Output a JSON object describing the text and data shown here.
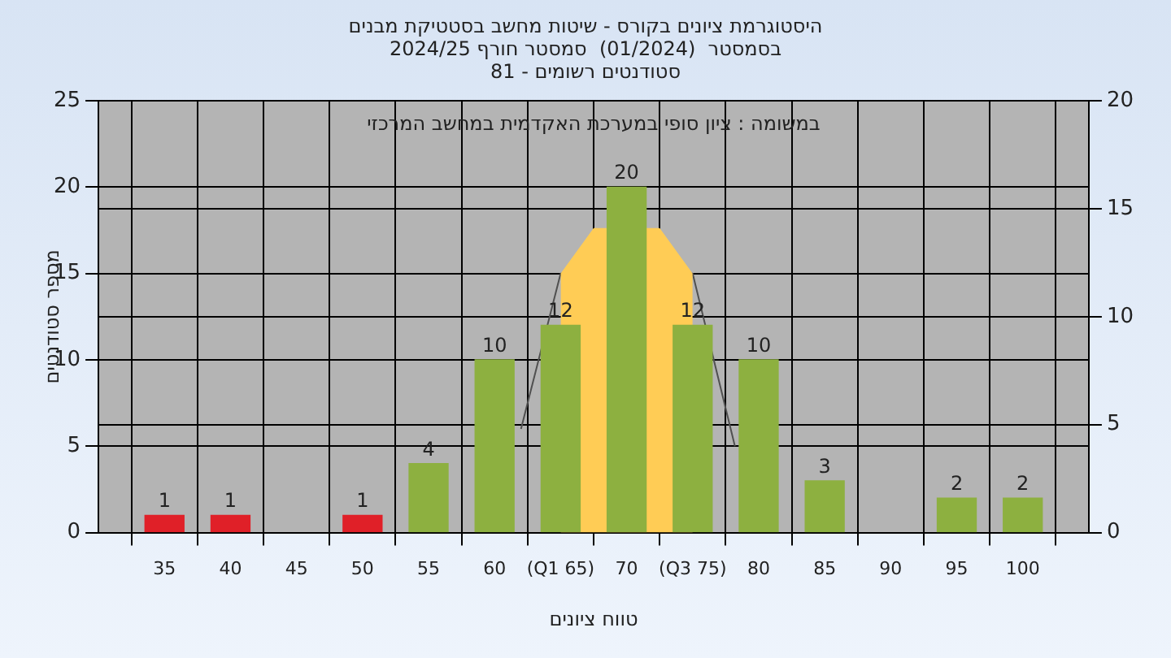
{
  "chart_data": {
    "type": "bar",
    "title": "היסטוגרמת ציונים בקורס - שיטות מחשב בסטטיקת מבנים\nבסמסטר  (01/2024)  סמסטר חורף 2024/25\nסטודנטים רשומים - 81",
    "xlabel": "טווח ציונים",
    "ylabel": "מספר סטודנטים",
    "annotations": [
      "במשומה : ציון סופי במערכת האקדמית במחשב המרכזי"
    ],
    "x": [
      35,
      40,
      50,
      55,
      60,
      65,
      70,
      75,
      80,
      85,
      95,
      100
    ],
    "series": [
      {
        "type": "area",
        "axis": "y2",
        "color": "#ffcc55",
        "x": [
          65,
          67.5,
          72.5,
          75
        ],
        "values": [
          12,
          14.1,
          14.1,
          12
        ]
      },
      {
        "type": "line",
        "axis": "y2",
        "color": "#505050",
        "x": [
          62,
          65,
          75,
          78.2
        ],
        "values": [
          4.8,
          12,
          12,
          4
        ]
      },
      {
        "colors": [
          "#e02028",
          "#e02028",
          "#e02028",
          "#8db040",
          "#8db040",
          "#8db040",
          "#8db040",
          "#8db040",
          "#8db040",
          "#8db040",
          "#8db040",
          "#8db040"
        ],
        "values": [
          1,
          1,
          1,
          4,
          10,
          12,
          20,
          12,
          10,
          3,
          2,
          2
        ],
        "value_labels": [
          "1",
          "1",
          "1",
          "4",
          "10",
          "12",
          "20",
          "12",
          "10",
          "3",
          "2",
          "2"
        ]
      }
    ],
    "xlim": [
      30,
      105
    ],
    "xticks": [
      35,
      40,
      45,
      50,
      55,
      60,
      {
        "value": 65,
        "label": "(Q1 65)"
      },
      70,
      {
        "value": 75,
        "label": "(Q3 75)"
      },
      80,
      85,
      90,
      95,
      100
    ],
    "ylim": [
      0,
      25
    ],
    "yticks": [
      0,
      5,
      10,
      15,
      20,
      25
    ],
    "y2lim": [
      0,
      20
    ],
    "y2ticks": [
      0,
      5,
      10,
      15,
      20
    ],
    "grid": true,
    "legend": false
  }
}
